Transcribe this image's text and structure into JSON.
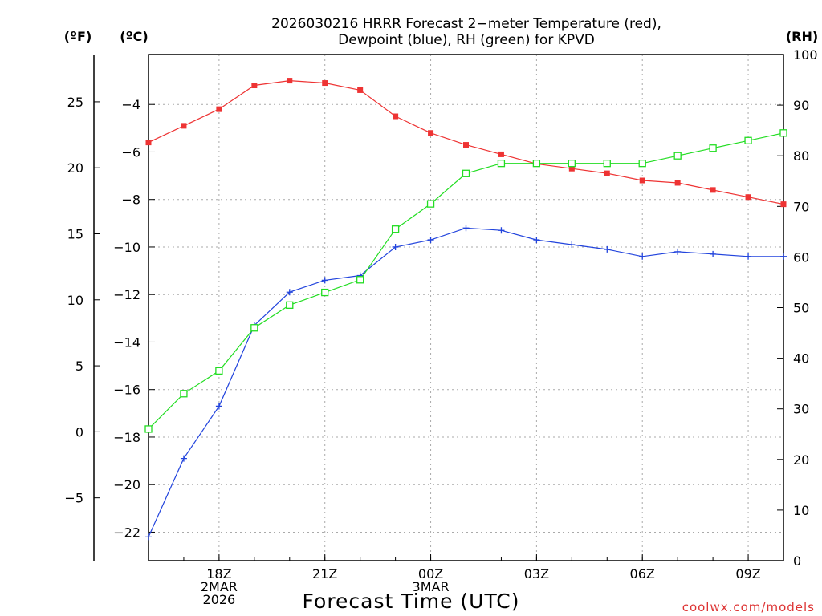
{
  "chart_data": {
    "type": "line",
    "title": "2026030216 HRRR Forecast 2−meter Temperature (red),",
    "subtitle": "Dewpoint (blue), RH (green) for KPVD",
    "xlabel": "Forecast Time (UTC)",
    "credit": "coolwx.com/models",
    "units": {
      "fahrenheit": "(ºF)",
      "celsius": "(ºC)",
      "rh": "(RH)"
    },
    "x_hours": [
      16,
      17,
      18,
      19,
      20,
      21,
      22,
      23,
      24,
      25,
      26,
      27,
      28,
      29,
      30,
      31,
      32,
      33,
      34
    ],
    "x_range": [
      16,
      34
    ],
    "x_ticks": [
      {
        "hour": 18,
        "lines": [
          "18Z",
          "2MAR",
          "2026"
        ]
      },
      {
        "hour": 21,
        "lines": [
          "21Z"
        ]
      },
      {
        "hour": 24,
        "lines": [
          "00Z",
          "3MAR"
        ]
      },
      {
        "hour": 27,
        "lines": [
          "03Z"
        ]
      },
      {
        "hour": 30,
        "lines": [
          "06Z"
        ]
      },
      {
        "hour": 33,
        "lines": [
          "09Z"
        ]
      }
    ],
    "celsius_range": [
      -23.2,
      -1.9
    ],
    "celsius_ticks": [
      -4,
      -6,
      -8,
      -10,
      -12,
      -14,
      -16,
      -18,
      -20,
      -22
    ],
    "fahrenheit_ticks": [
      25,
      20,
      15,
      10,
      5,
      0,
      -5
    ],
    "rh_range": [
      0,
      100
    ],
    "rh_ticks": [
      100,
      90,
      80,
      70,
      60,
      50,
      40,
      30,
      20,
      10,
      0
    ],
    "series": [
      {
        "name": "Temperature",
        "axis": "celsius",
        "color": "#ee3333",
        "marker": "filled-square",
        "values": [
          -5.6,
          -4.9,
          -4.2,
          -3.2,
          -3.0,
          -3.1,
          -3.4,
          -4.5,
          -5.2,
          -5.7,
          -6.1,
          -6.5,
          -6.7,
          -6.9,
          -7.2,
          -7.3,
          -7.6,
          -7.9,
          -8.2
        ]
      },
      {
        "name": "Dewpoint",
        "axis": "celsius",
        "color": "#2244dd",
        "marker": "plus",
        "values": [
          -22.2,
          -18.9,
          -16.7,
          -13.3,
          -11.9,
          -11.4,
          -11.2,
          -10.0,
          -9.7,
          -9.2,
          -9.3,
          -9.7,
          -9.9,
          -10.1,
          -10.4,
          -10.2,
          -10.3,
          -10.4,
          -10.4
        ]
      },
      {
        "name": "RH",
        "axis": "rh",
        "color": "#22dd22",
        "marker": "open-square",
        "values": [
          26,
          33,
          37.5,
          46,
          50.5,
          53,
          55.5,
          65.5,
          70.5,
          76.5,
          78.5,
          78.5,
          78.5,
          78.5,
          78.5,
          80,
          81.5,
          83,
          84.5
        ]
      }
    ]
  }
}
